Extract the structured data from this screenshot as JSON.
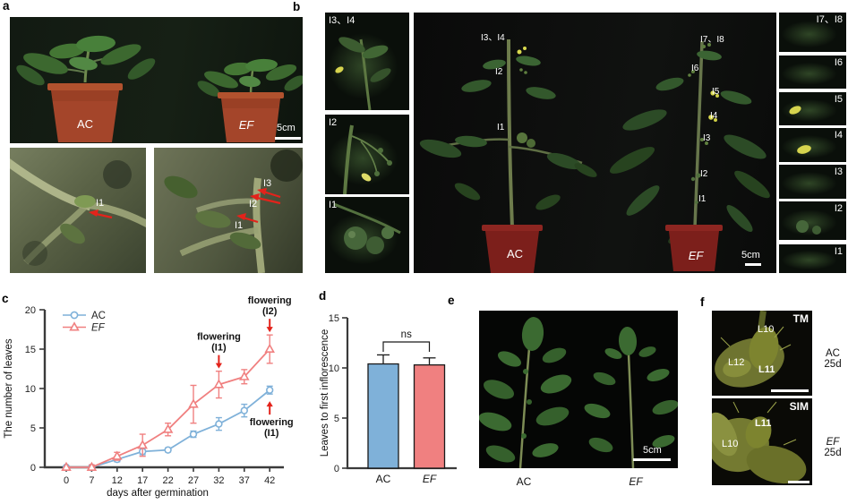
{
  "figure": {
    "panel_labels": {
      "a": "a",
      "b": "b",
      "c": "c",
      "d": "d",
      "e": "e",
      "f": "f"
    }
  },
  "colors": {
    "ac_blue": "#7FB1D9",
    "ef_red": "#F08080",
    "arrow_red": "#E3231B",
    "pot_light_red": "#A4452A",
    "pot_dark_red": "#7C1F1B"
  },
  "panel_a": {
    "top": {
      "ac": "AC",
      "ef": "EF",
      "scale": "5cm"
    },
    "bottom_left": {
      "i1": "I1"
    },
    "bottom_right": {
      "i3": "I3",
      "i2": "I2",
      "i1": "I1"
    }
  },
  "panel_b": {
    "left_strip": [
      "I3、I4",
      "I2",
      "I1"
    ],
    "right_strip": [
      "I7、I8",
      "I6",
      "I5",
      "I4",
      "I3",
      "I2",
      "I1"
    ],
    "main": {
      "ac": "AC",
      "ef": "EF",
      "scale": "5cm",
      "ac_nodes": [
        "I3、I4",
        "I2",
        "I1"
      ],
      "ef_nodes": [
        "I7、I8",
        "I6",
        "I5",
        "I4",
        "I3",
        "I2",
        "I1"
      ]
    }
  },
  "panel_e": {
    "ac": "AC",
    "ef": "EF",
    "scale": "5cm"
  },
  "panel_f": {
    "top": {
      "tag": "TM",
      "labels": [
        "L10",
        "L12",
        "L11"
      ],
      "genotype": "AC",
      "age": "25d"
    },
    "bottom": {
      "tag": "SIM",
      "labels": [
        "L11",
        "L10"
      ],
      "genotype": "EF",
      "age": "25d"
    }
  },
  "chart_data": [
    {
      "type": "line",
      "title": "",
      "xlabel": "days after germination",
      "ylabel": "The number of leaves",
      "x": [
        0,
        7,
        12,
        17,
        22,
        27,
        32,
        37,
        42
      ],
      "ylim": [
        0,
        20
      ],
      "yticks": [
        0,
        5,
        10,
        15,
        20
      ],
      "grid": false,
      "legend_position": "top-left",
      "series": [
        {
          "name": "AC",
          "marker": "circle",
          "color": "#7FB1D9",
          "values": [
            0,
            0,
            1.0,
            2.0,
            2.2,
            4.2,
            5.5,
            7.2,
            9.8
          ],
          "errors": [
            0.1,
            0.1,
            0.3,
            0.4,
            0.25,
            0.4,
            0.8,
            0.8,
            0.5
          ]
        },
        {
          "name": "EF",
          "marker": "triangle",
          "color": "#F08080",
          "values": [
            0,
            0,
            1.4,
            2.8,
            4.8,
            8.0,
            10.5,
            11.5,
            15.0
          ],
          "errors": [
            0.1,
            0.3,
            0.5,
            1.4,
            0.8,
            2.4,
            1.7,
            0.9,
            1.8
          ]
        }
      ],
      "annotations": [
        {
          "lines": [
            "flowering",
            "(I1)"
          ],
          "arrow": "down",
          "day": 32,
          "series": "EF"
        },
        {
          "lines": [
            "flowering",
            "(I2)"
          ],
          "arrow": "down",
          "day": 42,
          "series": "EF"
        },
        {
          "lines": [
            "flowering",
            "(I1)"
          ],
          "arrow": "up",
          "day": 42,
          "series": "AC"
        }
      ]
    },
    {
      "type": "bar",
      "categories": [
        "AC",
        "EF"
      ],
      "values": [
        10.4,
        10.3
      ],
      "errors": [
        0.9,
        0.7
      ],
      "colors": [
        "#7FB1D9",
        "#F08080"
      ],
      "title": "",
      "xlabel": "",
      "ylabel": "Leaves to first inflorescence",
      "ylim": [
        0,
        15
      ],
      "yticks": [
        0,
        5,
        10,
        15
      ],
      "significance": "ns"
    }
  ]
}
